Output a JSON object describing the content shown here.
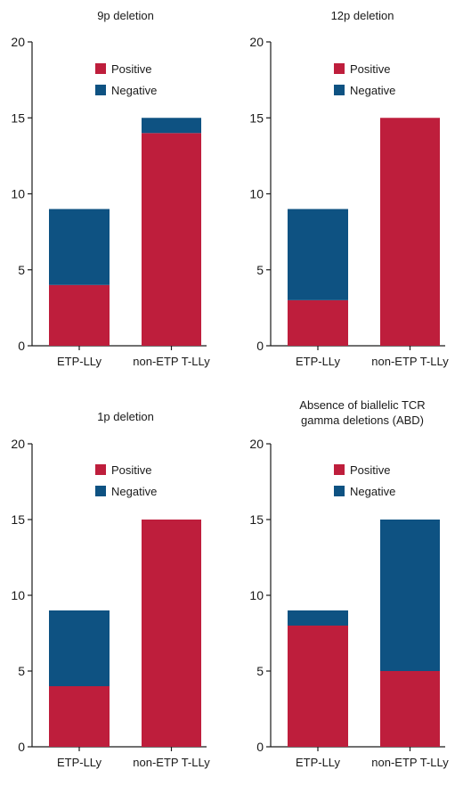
{
  "chart_data": [
    {
      "type": "bar",
      "stacked": true,
      "title": [
        "9p deletion"
      ],
      "categories": [
        "ETP-LLy",
        "non-ETP T-LLy"
      ],
      "ylim": [
        0,
        20
      ],
      "yticks": [
        0,
        5,
        10,
        15,
        20
      ],
      "series": [
        {
          "name": "Positive",
          "values": [
            4,
            14
          ]
        },
        {
          "name": "Negative",
          "values": [
            5,
            1
          ]
        }
      ],
      "legend": "top-left",
      "grid": false
    },
    {
      "type": "bar",
      "stacked": true,
      "title": [
        "12p deletion"
      ],
      "categories": [
        "ETP-LLy",
        "non-ETP T-LLy"
      ],
      "ylim": [
        0,
        20
      ],
      "yticks": [
        0,
        5,
        10,
        15,
        20
      ],
      "series": [
        {
          "name": "Positive",
          "values": [
            3,
            15
          ]
        },
        {
          "name": "Negative",
          "values": [
            6,
            0
          ]
        }
      ],
      "legend": "top-left",
      "grid": false
    },
    {
      "type": "bar",
      "stacked": true,
      "title": [
        "1p deletion"
      ],
      "categories": [
        "ETP-LLy",
        "non-ETP T-LLy"
      ],
      "ylim": [
        0,
        20
      ],
      "yticks": [
        0,
        5,
        10,
        15,
        20
      ],
      "series": [
        {
          "name": "Positive",
          "values": [
            4,
            15
          ]
        },
        {
          "name": "Negative",
          "values": [
            5,
            0
          ]
        }
      ],
      "legend": "top-left",
      "grid": false
    },
    {
      "type": "bar",
      "stacked": true,
      "title": [
        "Absence of biallelic TCR",
        "gamma deletions (ABD)"
      ],
      "categories": [
        "ETP-LLy",
        "non-ETP T-LLy"
      ],
      "ylim": [
        0,
        20
      ],
      "yticks": [
        0,
        5,
        10,
        15,
        20
      ],
      "series": [
        {
          "name": "Positive",
          "values": [
            8,
            5
          ]
        },
        {
          "name": "Negative",
          "values": [
            1,
            10
          ]
        }
      ],
      "legend": "top-left",
      "grid": false
    }
  ],
  "colors": {
    "positive": "#be1e3c",
    "negative": "#0e5282",
    "axis": "#1a1a1a"
  }
}
